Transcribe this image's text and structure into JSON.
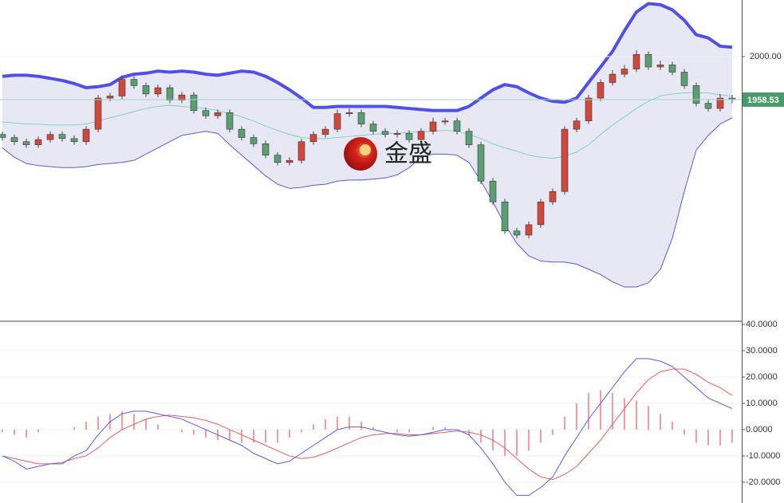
{
  "chart_data": [
    {
      "type": "candlestick",
      "watermark": "金盛",
      "ylim": [
        1745,
        2054.5
      ],
      "yticks": [
        {
          "value": 2000,
          "label": "2000.00"
        }
      ],
      "last_price": 1958.53,
      "last_price_color": "#4a9a6a",
      "up_color": "#d0483c",
      "down_color": "#5a9e72",
      "open": [
        1925,
        1922,
        1918,
        1915,
        1920,
        1925,
        1921,
        1918,
        1930,
        1960,
        1962,
        1978,
        1972,
        1964,
        1970,
        1958,
        1963,
        1948,
        1943,
        1946,
        1930,
        1922,
        1916,
        1905,
        1898,
        1900,
        1918,
        1925,
        1930,
        1945,
        1946,
        1935,
        1928,
        1925,
        1926,
        1920,
        1928,
        1937,
        1938,
        1928,
        1915,
        1880,
        1860,
        1832,
        1828,
        1838,
        1860,
        1870,
        1930,
        1938,
        1960,
        1975,
        1983,
        1988,
        2002,
        1990,
        1992,
        1985,
        1972,
        1955,
        1950,
        1960
      ],
      "high": [
        1928,
        1925,
        1921,
        1923,
        1928,
        1928,
        1924,
        1933,
        1963,
        1965,
        1982,
        1981,
        1975,
        1973,
        1973,
        1966,
        1966,
        1951,
        1949,
        1949,
        1933,
        1925,
        1919,
        1908,
        1903,
        1921,
        1928,
        1933,
        1949,
        1950,
        1949,
        1938,
        1931,
        1929,
        1929,
        1931,
        1941,
        1941,
        1941,
        1931,
        1918,
        1883,
        1863,
        1835,
        1841,
        1863,
        1873,
        1933,
        1941,
        1963,
        1978,
        1987,
        1992,
        2006,
        2005,
        1996,
        1995,
        1988,
        1975,
        1958,
        1964,
        1963
      ],
      "low": [
        1919,
        1915,
        1912,
        1912,
        1917,
        1918,
        1915,
        1915,
        1927,
        1957,
        1959,
        1969,
        1961,
        1961,
        1955,
        1955,
        1945,
        1940,
        1940,
        1927,
        1919,
        1913,
        1902,
        1895,
        1895,
        1897,
        1915,
        1922,
        1927,
        1942,
        1932,
        1925,
        1922,
        1922,
        1917,
        1917,
        1925,
        1934,
        1925,
        1912,
        1877,
        1857,
        1829,
        1825,
        1825,
        1835,
        1857,
        1867,
        1927,
        1935,
        1957,
        1972,
        1980,
        1985,
        1987,
        1987,
        1982,
        1969,
        1952,
        1947,
        1947,
        1955
      ],
      "close": [
        1922,
        1918,
        1915,
        1920,
        1925,
        1921,
        1918,
        1930,
        1960,
        1962,
        1978,
        1972,
        1964,
        1970,
        1958,
        1963,
        1948,
        1943,
        1946,
        1930,
        1922,
        1916,
        1905,
        1898,
        1900,
        1918,
        1925,
        1930,
        1945,
        1946,
        1935,
        1928,
        1925,
        1926,
        1920,
        1928,
        1937,
        1938,
        1928,
        1915,
        1880,
        1860,
        1832,
        1828,
        1838,
        1860,
        1870,
        1930,
        1938,
        1960,
        1975,
        1983,
        1988,
        2002,
        1990,
        1992,
        1985,
        1972,
        1955,
        1950,
        1960,
        1958.53
      ],
      "bollinger": {
        "fill": "#e4e4f2",
        "upper_color": "#5050e8",
        "middle_color": "#7fd3bd",
        "lower_color": "#5a5ae0",
        "upper": [
          1981,
          1982,
          1982,
          1981,
          1979,
          1977,
          1974,
          1970,
          1971,
          1973,
          1980,
          1983,
          1984,
          1986,
          1985,
          1986,
          1985,
          1983,
          1982,
          1984,
          1986,
          1985,
          1981,
          1975,
          1968,
          1960,
          1951,
          1951,
          1952,
          1952,
          1952,
          1952,
          1952,
          1951,
          1950,
          1949,
          1948,
          1948,
          1948,
          1952,
          1960,
          1968,
          1973,
          1971,
          1965,
          1960,
          1957,
          1956,
          1960,
          1975,
          1990,
          2005,
          2025,
          2043,
          2051,
          2050,
          2045,
          2035,
          2021,
          2018,
          2010,
          2009
        ],
        "middle": [
          1937,
          1936,
          1935,
          1935,
          1934,
          1934,
          1934,
          1935,
          1938,
          1941,
          1944,
          1947,
          1950,
          1952,
          1953,
          1952,
          1951,
          1950,
          1948,
          1945,
          1942,
          1938,
          1933,
          1929,
          1925,
          1922,
          1921,
          1921,
          1922,
          1923,
          1924,
          1925,
          1926,
          1926,
          1927,
          1928,
          1928,
          1929,
          1928,
          1925,
          1921,
          1916,
          1912,
          1909,
          1905,
          1903,
          1902,
          1904,
          1908,
          1915,
          1925,
          1934,
          1942,
          1950,
          1957,
          1962,
          1964,
          1965,
          1965,
          1965,
          1963,
          1962
        ],
        "lower": [
          1912,
          1903,
          1897,
          1895,
          1894,
          1893,
          1893,
          1894,
          1896,
          1897,
          1898,
          1900,
          1906,
          1912,
          1918,
          1924,
          1926,
          1928,
          1926,
          1915,
          1905,
          1895,
          1885,
          1877,
          1873,
          1874,
          1876,
          1877,
          1880,
          1881,
          1881,
          1882,
          1883,
          1886,
          1893,
          1903,
          1906,
          1906,
          1905,
          1898,
          1880,
          1860,
          1838,
          1820,
          1808,
          1803,
          1802,
          1802,
          1800,
          1795,
          1790,
          1783,
          1778,
          1778,
          1782,
          1795,
          1825,
          1870,
          1910,
          1924,
          1935,
          1941
        ]
      }
    },
    {
      "type": "macd",
      "ylim": [
        -27.9,
        41.2
      ],
      "yticks": [
        {
          "value": 40,
          "label": "40.0000"
        },
        {
          "value": 30,
          "label": "30.0000"
        },
        {
          "value": 20,
          "label": "20.0000"
        },
        {
          "value": 10,
          "label": "10.0000"
        },
        {
          "value": 0,
          "label": "0.0000"
        },
        {
          "value": -10,
          "label": "-10.0000"
        },
        {
          "value": -20,
          "label": "-20.0000"
        }
      ],
      "grid": true,
      "dif": {
        "color": "#5a5af0",
        "values": [
          -10,
          -12,
          -15,
          -14,
          -13,
          -13,
          -10,
          -8,
          -2,
          3,
          6,
          7,
          7,
          6,
          5,
          4,
          2,
          0,
          -2,
          -4,
          -6,
          -9,
          -11,
          -13,
          -12,
          -9,
          -6,
          -3,
          0,
          1,
          1,
          0,
          -1,
          -2,
          -2.5,
          -2,
          -1,
          0,
          0,
          -2,
          -7,
          -13,
          -20,
          -25,
          -25,
          -22,
          -18,
          -10,
          -3,
          4,
          10,
          16,
          22,
          27,
          27,
          26,
          24,
          20,
          16,
          12,
          10,
          8
        ]
      },
      "dea": {
        "color": "#f05a5a",
        "values": [
          -10,
          -11,
          -12,
          -13,
          -13,
          -12.5,
          -11,
          -10,
          -7,
          -3,
          0,
          2,
          4,
          5,
          5.5,
          5,
          4.5,
          3.5,
          2,
          0,
          -2,
          -4,
          -6,
          -8,
          -10,
          -11,
          -10.5,
          -9,
          -7,
          -5,
          -3,
          -2,
          -1.5,
          -1.5,
          -2,
          -2,
          -1.5,
          -1,
          -0.5,
          -1,
          -2,
          -4,
          -7,
          -11,
          -15,
          -18,
          -19,
          -17,
          -14,
          -9,
          -4,
          2,
          8,
          14,
          19,
          22,
          23,
          23,
          21,
          18,
          16,
          13
        ]
      },
      "histogram": {
        "color": "#f05a5a",
        "values": [
          -1,
          -2,
          -3,
          -1,
          0,
          0,
          1,
          3,
          5,
          6,
          7,
          6,
          4,
          2,
          0,
          -1,
          -2,
          -3,
          -4,
          -4,
          -5,
          -5,
          -5,
          -5,
          -3,
          -1,
          2,
          4,
          5,
          5,
          3,
          1,
          0,
          -1,
          -1,
          0,
          1,
          1,
          0,
          -2,
          -5,
          -8,
          -10,
          -10,
          -8,
          -5,
          -2,
          5,
          10,
          14,
          15,
          14,
          12,
          11,
          9,
          6,
          3,
          -2,
          -5,
          -6,
          -6,
          -5
        ]
      }
    }
  ]
}
